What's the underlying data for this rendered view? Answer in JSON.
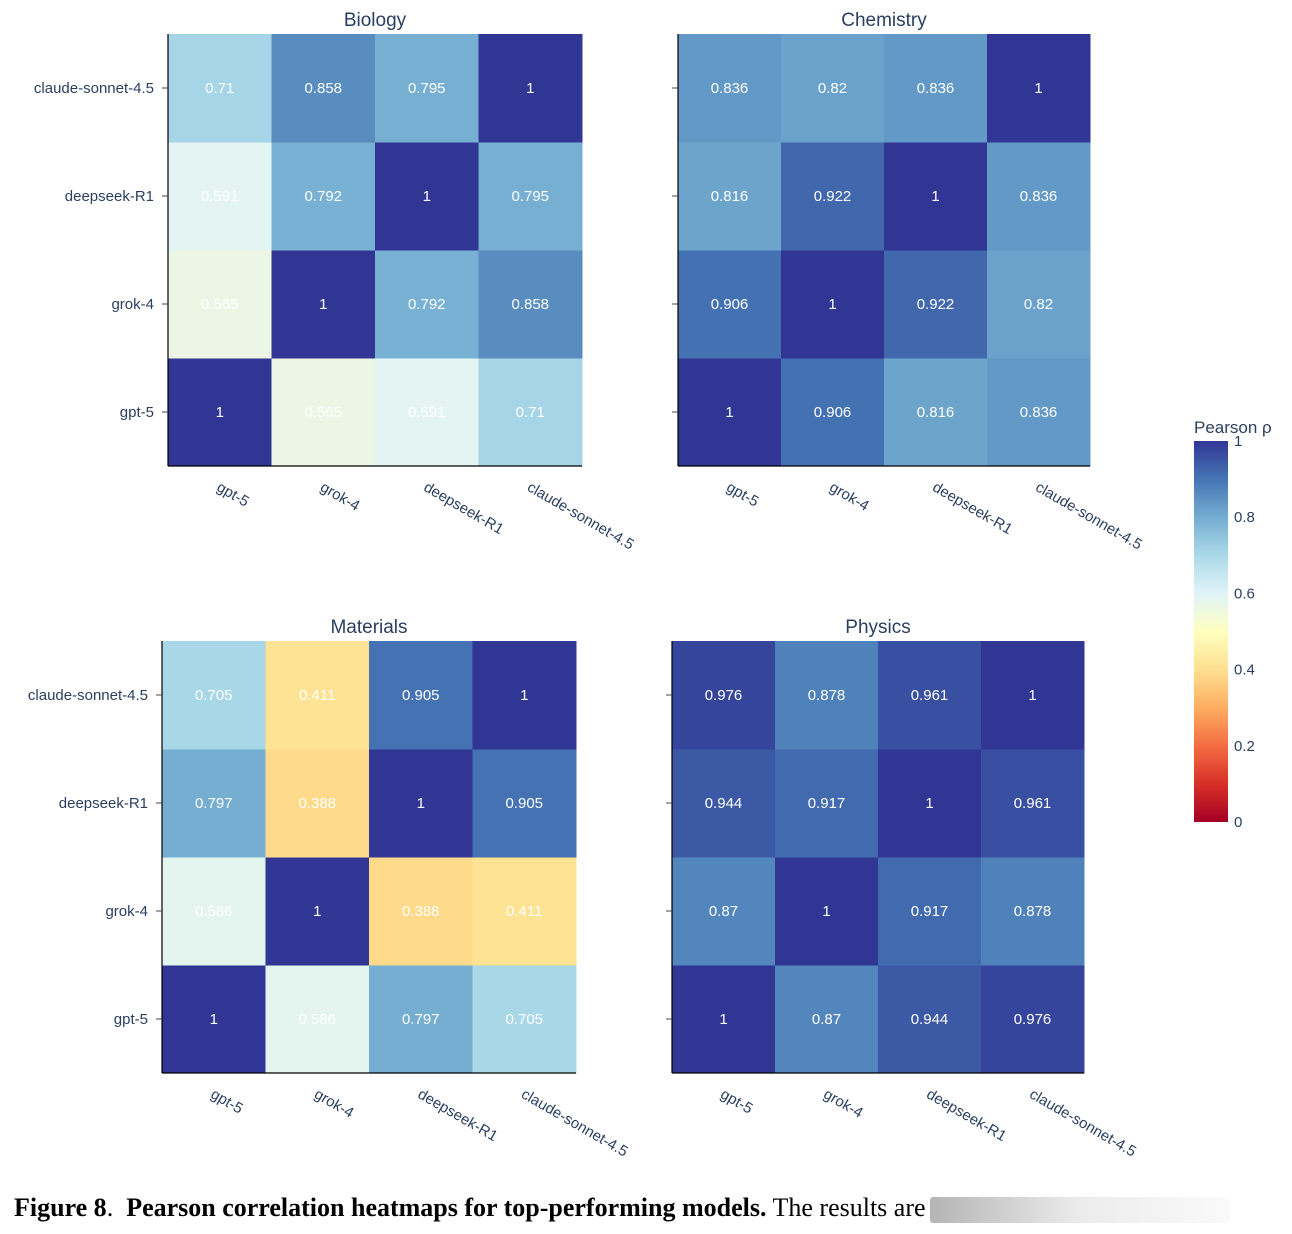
{
  "chart_data": [
    {
      "type": "heatmap",
      "title": "Biology",
      "x_categories": [
        "gpt-5",
        "grok-4",
        "deepseek-R1",
        "claude-sonnet-4.5"
      ],
      "y_categories": [
        "gpt-5",
        "grok-4",
        "deepseek-R1",
        "claude-sonnet-4.5"
      ],
      "values": [
        [
          1,
          0.565,
          0.591,
          0.71
        ],
        [
          0.565,
          1,
          0.792,
          0.858
        ],
        [
          0.591,
          0.792,
          1,
          0.795
        ],
        [
          0.71,
          0.858,
          0.795,
          1
        ]
      ]
    },
    {
      "type": "heatmap",
      "title": "Chemistry",
      "x_categories": [
        "gpt-5",
        "grok-4",
        "deepseek-R1",
        "claude-sonnet-4.5"
      ],
      "y_categories": [
        "gpt-5",
        "grok-4",
        "deepseek-R1",
        "claude-sonnet-4.5"
      ],
      "values": [
        [
          1,
          0.906,
          0.816,
          0.836
        ],
        [
          0.906,
          1,
          0.922,
          0.82
        ],
        [
          0.816,
          0.922,
          1,
          0.836
        ],
        [
          0.836,
          0.82,
          0.836,
          1
        ]
      ]
    },
    {
      "type": "heatmap",
      "title": "Materials",
      "x_categories": [
        "gpt-5",
        "grok-4",
        "deepseek-R1",
        "claude-sonnet-4.5"
      ],
      "y_categories": [
        "gpt-5",
        "grok-4",
        "deepseek-R1",
        "claude-sonnet-4.5"
      ],
      "values": [
        [
          1,
          0.586,
          0.797,
          0.705
        ],
        [
          0.586,
          1,
          0.388,
          0.411
        ],
        [
          0.797,
          0.388,
          1,
          0.905
        ],
        [
          0.705,
          0.411,
          0.905,
          1
        ]
      ]
    },
    {
      "type": "heatmap",
      "title": "Physics",
      "x_categories": [
        "gpt-5",
        "grok-4",
        "deepseek-R1",
        "claude-sonnet-4.5"
      ],
      "y_categories": [
        "gpt-5",
        "grok-4",
        "deepseek-R1",
        "claude-sonnet-4.5"
      ],
      "values": [
        [
          1,
          0.87,
          0.944,
          0.976
        ],
        [
          0.87,
          1,
          0.917,
          0.878
        ],
        [
          0.944,
          0.917,
          1,
          0.961
        ],
        [
          0.976,
          0.878,
          0.961,
          1
        ]
      ]
    }
  ],
  "colorbar": {
    "title": "Pearson ρ",
    "range": [
      0,
      1
    ],
    "ticks": [
      "0",
      "0.2",
      "0.4",
      "0.6",
      "0.8",
      "1"
    ],
    "colorscale": [
      "#a50026",
      "#d73027",
      "#f46d43",
      "#fdae61",
      "#fee090",
      "#ffffbf",
      "#e0f3f8",
      "#abd9e9",
      "#74add1",
      "#4575b4",
      "#313695"
    ]
  },
  "caption": {
    "label": "Figure 8",
    "sep": ".",
    "title": "Pearson correlation heatmaps for top-performing models.",
    "text": "The results are"
  }
}
